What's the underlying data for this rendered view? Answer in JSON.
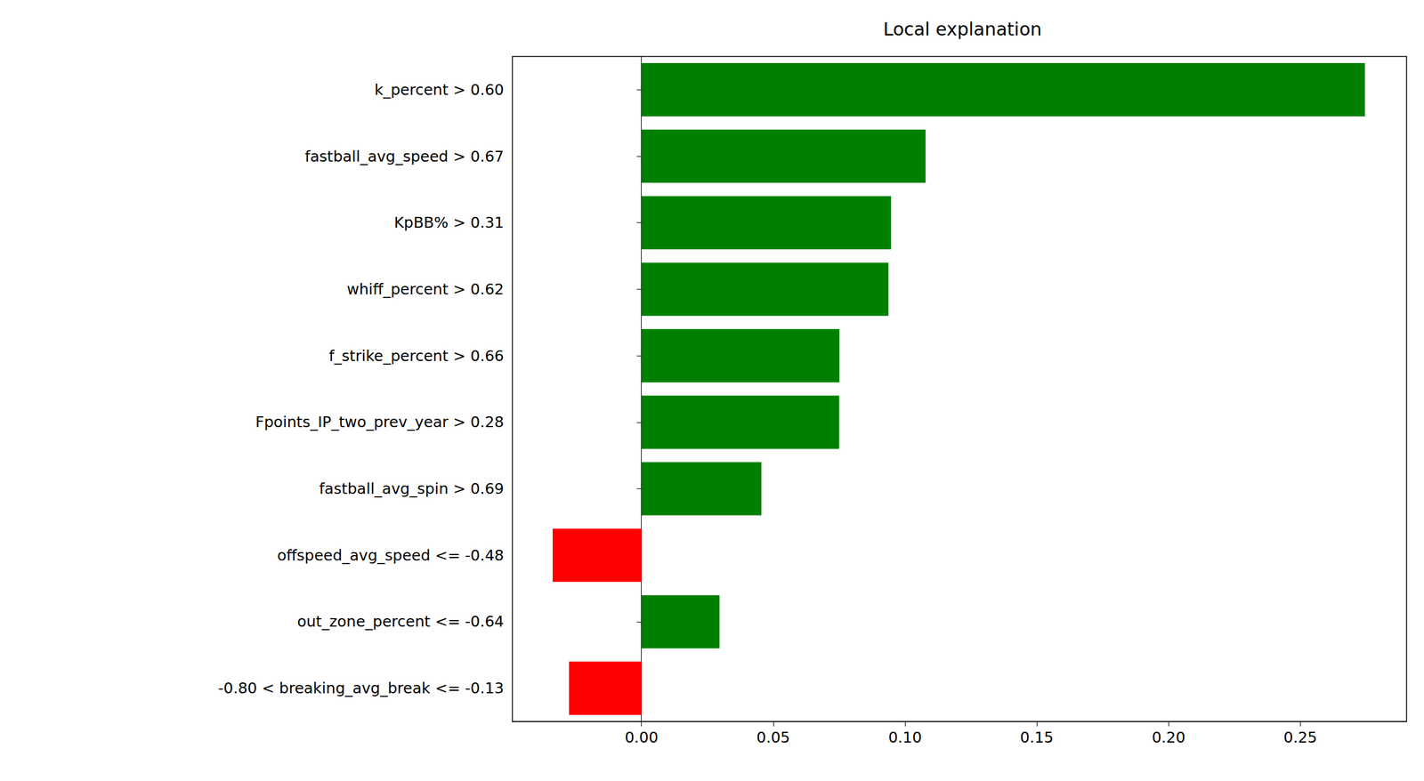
{
  "chart_data": {
    "type": "bar",
    "orientation": "horizontal",
    "title": "Local explanation",
    "categories": [
      "k_percent > 0.60",
      "fastball_avg_speed > 0.67",
      "KpBB% > 0.31",
      "whiff_percent > 0.62",
      "f_strike_percent > 0.66",
      "Fpoints_IP_two_prev_year > 0.28",
      "fastball_avg_spin > 0.69",
      "offspeed_avg_speed <= -0.48",
      "out_zone_percent <= -0.64",
      "-0.80 < breaking_avg_break <= -0.13"
    ],
    "values": [
      0.2745,
      0.1078,
      0.0947,
      0.0937,
      0.0751,
      0.075,
      0.0455,
      -0.0337,
      0.0296,
      -0.0275
    ],
    "colors": [
      "#008000",
      "#008000",
      "#008000",
      "#008000",
      "#008000",
      "#008000",
      "#008000",
      "#ff0000",
      "#008000",
      "#ff0000"
    ],
    "xlim": [
      -0.049,
      0.2903
    ],
    "xticks": [
      {
        "value": 0,
        "label": "0.00"
      },
      {
        "value": 0.05,
        "label": "0.05"
      },
      {
        "value": 0.1,
        "label": "0.10"
      },
      {
        "value": 0.15,
        "label": "0.15"
      },
      {
        "value": 0.2,
        "label": "0.20"
      },
      {
        "value": 0.25,
        "label": "0.25"
      }
    ],
    "grid": false
  }
}
